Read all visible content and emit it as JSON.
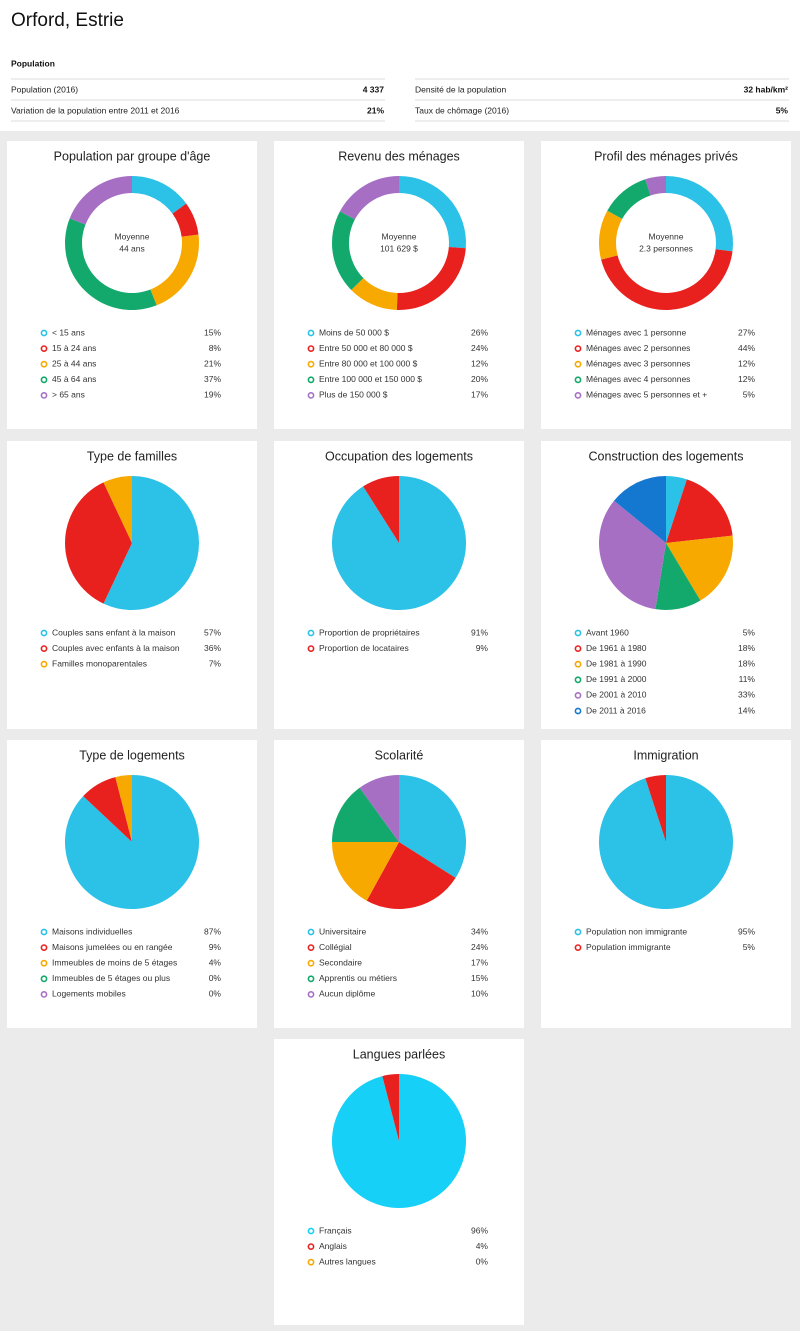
{
  "header": {
    "title": "Orford, Estrie"
  },
  "stats": {
    "title": "Population",
    "items": [
      {
        "label": "Population (2016)",
        "value": "4 337"
      },
      {
        "label": "Variation de la population entre 2011 et 2016",
        "value": "21%"
      },
      {
        "label": "Densité de la population",
        "value": "32 hab/km²"
      },
      {
        "label": "Taux de chômage (2016)",
        "value": "5%"
      }
    ]
  },
  "chart_data": [
    {
      "type": "donut",
      "title": "Population par groupe d'âge",
      "center_label": "Moyenne",
      "center_value": "44 ans",
      "categories": [
        "< 15 ans",
        "15 à 24 ans",
        "25 à 44 ans",
        "45 à 64 ans",
        "> 65 ans"
      ],
      "values": [
        15,
        8,
        21,
        37,
        19
      ],
      "value_labels": [
        "15%",
        "8%",
        "21%",
        "37%",
        "19%"
      ],
      "colors": [
        "#2cc1e6",
        "#e8211f",
        "#f8a900",
        "#13a96c",
        "#a66fc3"
      ]
    },
    {
      "type": "donut",
      "title": "Revenu des ménages",
      "center_label": "Moyenne",
      "center_value": "101 629 $",
      "categories": [
        "Moins de 50 000 $",
        "Entre 50 000 et 80 000 $",
        "Entre 80 000 et 100 000 $",
        "Entre 100 000 et 150 000 $",
        "Plus de 150 000 $"
      ],
      "values": [
        26,
        24,
        12,
        20,
        17
      ],
      "value_labels": [
        "26%",
        "24%",
        "12%",
        "20%",
        "17%"
      ],
      "colors": [
        "#2cc1e6",
        "#e8211f",
        "#f8a900",
        "#13a96c",
        "#a66fc3"
      ]
    },
    {
      "type": "donut",
      "title": "Profil des ménages privés",
      "center_label": "Moyenne",
      "center_value": "2.3 personnes",
      "categories": [
        "Ménages avec 1 personne",
        "Ménages avec 2 personnes",
        "Ménages avec 3 personnes",
        "Ménages avec 4 personnes",
        "Ménages avec 5 personnes et +"
      ],
      "values": [
        27,
        44,
        12,
        12,
        5
      ],
      "value_labels": [
        "27%",
        "44%",
        "12%",
        "12%",
        "5%"
      ],
      "colors": [
        "#2cc1e6",
        "#e8211f",
        "#f8a900",
        "#13a96c",
        "#a66fc3"
      ]
    },
    {
      "type": "pie",
      "title": "Type de familles",
      "categories": [
        "Couples sans enfant à la maison",
        "Couples avec enfants à la maison",
        "Familles monoparentales"
      ],
      "values": [
        57,
        36,
        7
      ],
      "value_labels": [
        "57%",
        "36%",
        "7%"
      ],
      "colors": [
        "#2cc1e6",
        "#e8211f",
        "#f8a900"
      ]
    },
    {
      "type": "pie",
      "title": "Occupation des logements",
      "categories": [
        "Proportion de propriétaires",
        "Proportion de locataires"
      ],
      "values": [
        91,
        9
      ],
      "value_labels": [
        "91%",
        "9%"
      ],
      "colors": [
        "#2cc1e6",
        "#e8211f"
      ]
    },
    {
      "type": "pie",
      "title": "Construction des logements",
      "categories": [
        "Avant 1960",
        "De 1961 à 1980",
        "De 1981 à 1990",
        "De 1991 à 2000",
        "De 2001 à 2010",
        "De 2011 à 2016"
      ],
      "values": [
        5,
        18,
        18,
        11,
        33,
        14
      ],
      "value_labels": [
        "5%",
        "18%",
        "18%",
        "11%",
        "33%",
        "14%"
      ],
      "colors": [
        "#2cc1e6",
        "#e8211f",
        "#f8a900",
        "#13a96c",
        "#a66fc3",
        "#1478d0"
      ]
    },
    {
      "type": "pie",
      "title": "Type de logements",
      "categories": [
        "Maisons individuelles",
        "Maisons jumelées ou en rangée",
        "Immeubles de moins de 5 étages",
        "Immeubles de 5 étages ou plus",
        "Logements mobiles"
      ],
      "values": [
        87,
        9,
        4,
        0,
        0
      ],
      "value_labels": [
        "87%",
        "9%",
        "4%",
        "0%",
        "0%"
      ],
      "colors": [
        "#2cc1e6",
        "#e8211f",
        "#f8a900",
        "#13a96c",
        "#a66fc3"
      ]
    },
    {
      "type": "pie",
      "title": "Scolarité",
      "categories": [
        "Universitaire",
        "Collégial",
        "Secondaire",
        "Apprentis ou métiers",
        "Aucun diplôme"
      ],
      "values": [
        34,
        24,
        17,
        15,
        10
      ],
      "value_labels": [
        "34%",
        "24%",
        "17%",
        "15%",
        "10%"
      ],
      "colors": [
        "#2cc1e6",
        "#e8211f",
        "#f8a900",
        "#13a96c",
        "#a66fc3"
      ]
    },
    {
      "type": "pie",
      "title": "Immigration",
      "categories": [
        "Population non immigrante",
        "Population immigrante"
      ],
      "values": [
        95,
        5
      ],
      "value_labels": [
        "95%",
        "5%"
      ],
      "colors": [
        "#2cc1e6",
        "#e8211f"
      ]
    },
    {
      "type": "pie",
      "title": "Langues parlées",
      "categories": [
        "Français",
        "Anglais",
        "Autres langues"
      ],
      "values": [
        96,
        4,
        0
      ],
      "value_labels": [
        "96%",
        "4%",
        "0%"
      ],
      "colors": [
        "#16d0f7",
        "#e8211f",
        "#f8a900"
      ]
    }
  ]
}
